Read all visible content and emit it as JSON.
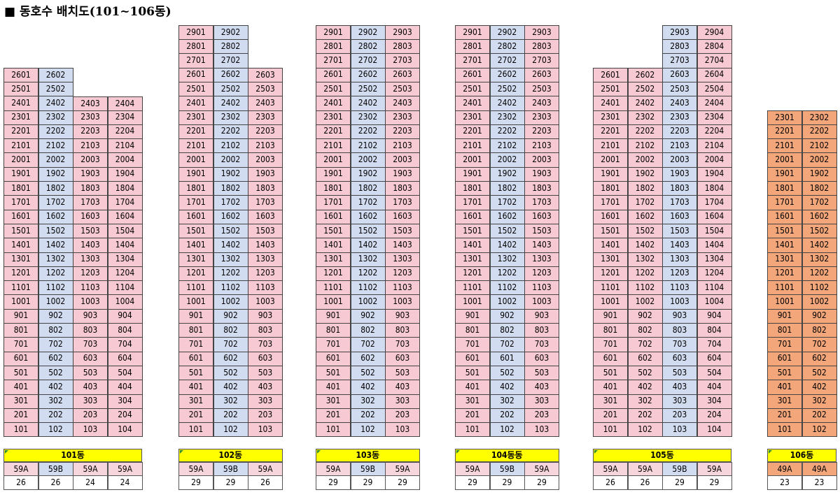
{
  "title": "■ 동호수 배치도(101~106동)",
  "buildings": [
    {
      "name": "101동",
      "type_colors": [
        "A",
        "B",
        "A",
        "A"
      ],
      "types": [
        "59A",
        "59B",
        "59A",
        "59A"
      ],
      "counts": [
        "26",
        "26",
        "24",
        "24"
      ],
      "columns": [
        {
          "unit": "01",
          "top": 26
        },
        {
          "unit": "02",
          "top": 26
        },
        {
          "unit": "03",
          "top": 24
        },
        {
          "unit": "04",
          "top": 24
        }
      ]
    },
    {
      "name": "102동",
      "type_colors": [
        "A",
        "B",
        "A"
      ],
      "types": [
        "59A",
        "59B",
        "59A"
      ],
      "counts": [
        "29",
        "29",
        "26"
      ],
      "columns": [
        {
          "unit": "01",
          "top": 29
        },
        {
          "unit": "02",
          "top": 29
        },
        {
          "unit": "03",
          "top": 26
        }
      ]
    },
    {
      "name": "103동",
      "type_colors": [
        "A",
        "B",
        "A"
      ],
      "types": [
        "59A",
        "59B",
        "59A"
      ],
      "counts": [
        "29",
        "29",
        "29"
      ],
      "columns": [
        {
          "unit": "01",
          "top": 29
        },
        {
          "unit": "02",
          "top": 29
        },
        {
          "unit": "03",
          "top": 29
        }
      ]
    },
    {
      "name": "104동동",
      "type_colors": [
        "A",
        "B",
        "A"
      ],
      "types": [
        "59A",
        "59B",
        "59A"
      ],
      "counts": [
        "29",
        "29",
        "29"
      ],
      "columns": [
        {
          "unit": "01",
          "top": 29
        },
        {
          "unit": "02",
          "top": 29
        },
        {
          "unit": "03",
          "top": 29
        }
      ],
      "overrides": {
        "602": "601"
      }
    },
    {
      "name": "105동",
      "type_colors": [
        "A",
        "A",
        "B",
        "A"
      ],
      "types": [
        "59A",
        "59A",
        "59B",
        "59A"
      ],
      "counts": [
        "26",
        "26",
        "29",
        "29"
      ],
      "columns": [
        {
          "unit": "01",
          "top": 26
        },
        {
          "unit": "02",
          "top": 26
        },
        {
          "unit": "03",
          "top": 29
        },
        {
          "unit": "04",
          "top": 29
        }
      ]
    },
    {
      "name": "106동",
      "type_colors": [
        "O",
        "O"
      ],
      "types": [
        "49A",
        "49A"
      ],
      "counts": [
        "23",
        "23"
      ],
      "columns": [
        {
          "unit": "01",
          "top": 23
        },
        {
          "unit": "02",
          "top": 23
        }
      ]
    }
  ]
}
